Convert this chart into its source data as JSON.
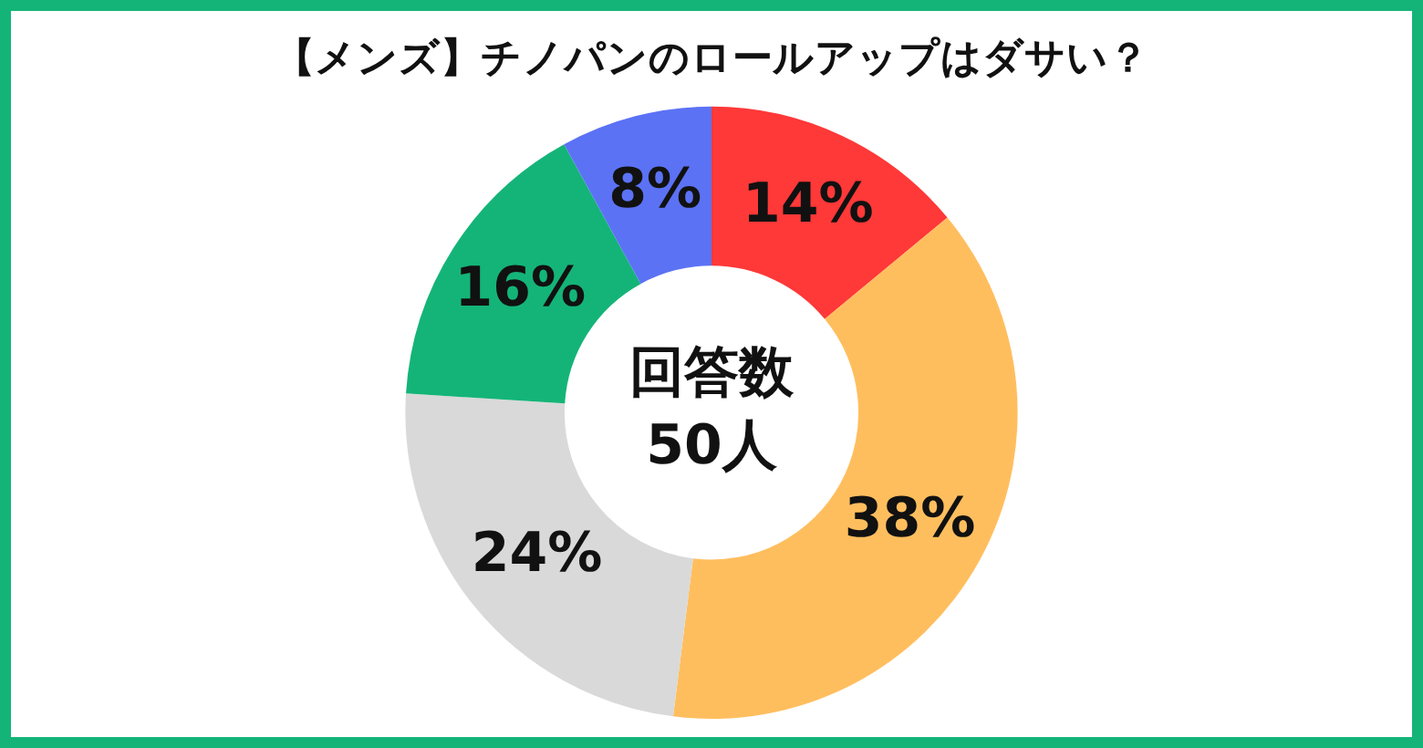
{
  "chart_data": {
    "type": "donut",
    "title": "【メンズ】チノパンのロールアップはダサい？",
    "categories": [
      null,
      null,
      null,
      null,
      null
    ],
    "values": [
      14,
      38,
      24,
      16,
      8
    ],
    "value_labels": [
      "14%",
      "38%",
      "24%",
      "16%",
      "8%"
    ],
    "colors": [
      "#ff3838",
      "#ffbe5e",
      "#d9d9d9",
      "#14b478",
      "#5b72f5"
    ],
    "annotations": [
      "回答数",
      "50人"
    ],
    "legend": false
  }
}
